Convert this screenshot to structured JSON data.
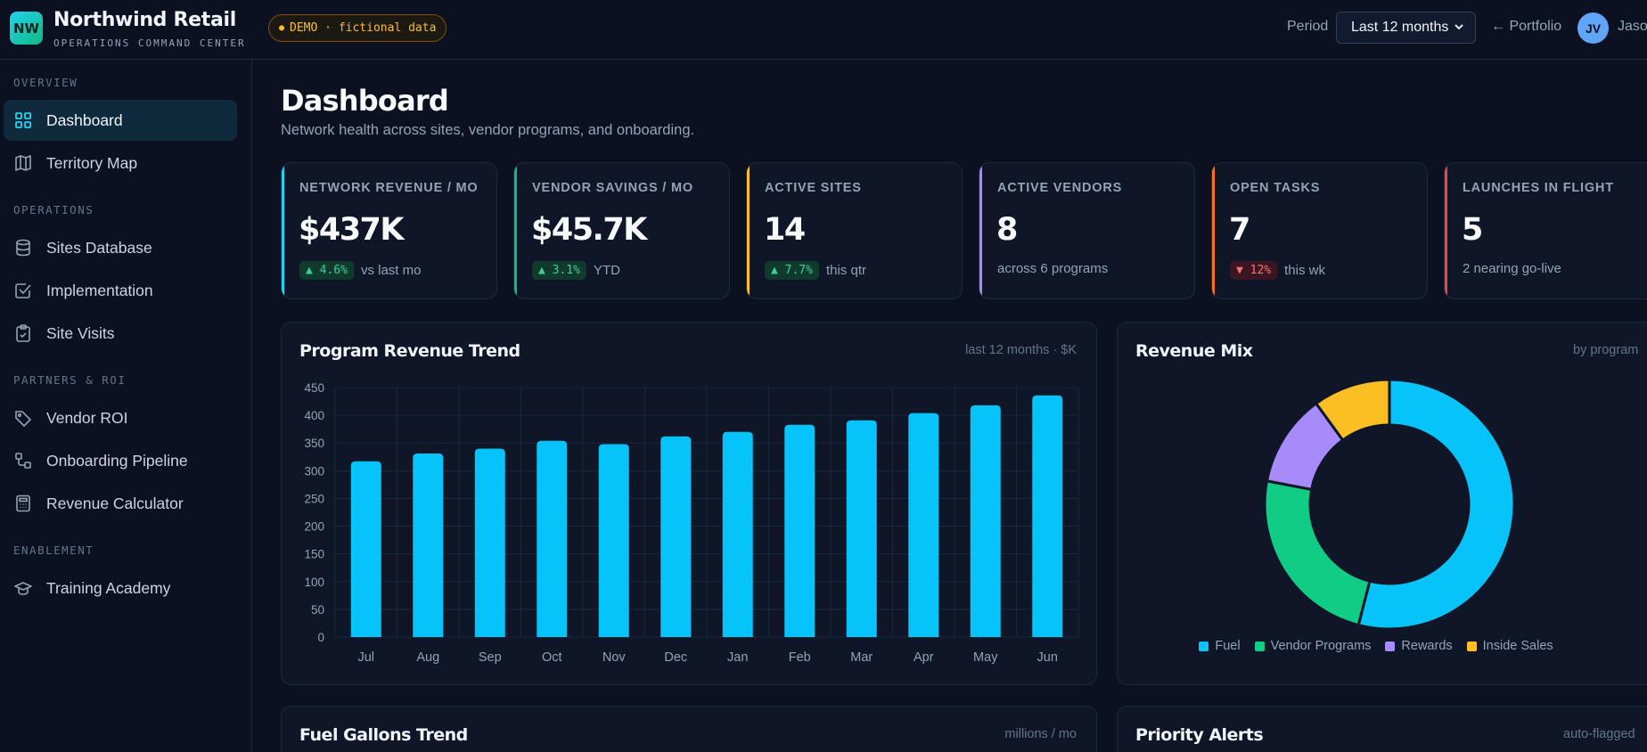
{
  "brand": {
    "logo": "NW",
    "title": "Northwind Retail",
    "subtitle": "OPERATIONS COMMAND CENTER"
  },
  "demo_badge": "DEMO · fictional data",
  "header": {
    "period_label": "Period",
    "period_value": "Last 12 months",
    "portfolio_link": "← Portfolio",
    "avatar": "JV",
    "user_name": "Jason V."
  },
  "sidebar": {
    "sections": [
      {
        "label": "OVERVIEW"
      },
      {
        "label": "OPERATIONS"
      },
      {
        "label": "PARTNERS & ROI"
      },
      {
        "label": "ENABLEMENT"
      }
    ],
    "items": [
      {
        "label": "Dashboard",
        "icon": "grid-icon",
        "active": true
      },
      {
        "label": "Territory Map",
        "icon": "map-icon"
      },
      {
        "label": "Sites Database",
        "icon": "database-icon"
      },
      {
        "label": "Implementation",
        "icon": "checkbox-icon"
      },
      {
        "label": "Site Visits",
        "icon": "clipboard-icon"
      },
      {
        "label": "Vendor ROI",
        "icon": "tag-icon"
      },
      {
        "label": "Onboarding Pipeline",
        "icon": "workflow-icon"
      },
      {
        "label": "Revenue Calculator",
        "icon": "calculator-icon"
      },
      {
        "label": "Training Academy",
        "icon": "graduation-cap-icon"
      }
    ]
  },
  "page": {
    "title": "Dashboard",
    "subtitle": "Network health across sites, vendor programs, and onboarding."
  },
  "kpis": [
    {
      "label": "NETWORK REVENUE / MO",
      "value": "$437K",
      "delta": "▲ 4.6%",
      "direction": "up",
      "note": "vs last mo",
      "color": "#22d3ee"
    },
    {
      "label": "VENDOR SAVINGS / MO",
      "value": "$45.7K",
      "delta": "▲ 3.1%",
      "direction": "up",
      "note": "YTD",
      "color": "#10b981"
    },
    {
      "label": "ACTIVE SITES",
      "value": "14",
      "delta": "▲ 7.7%",
      "direction": "up",
      "note": "this qtr",
      "color": "#fbbf24"
    },
    {
      "label": "ACTIVE VENDORS",
      "value": "8",
      "delta": "",
      "direction": "none",
      "note": "across 6 programs",
      "color": "#a78bfa"
    },
    {
      "label": "OPEN TASKS",
      "value": "7",
      "delta": "▼ 12%",
      "direction": "down",
      "note": "this wk",
      "color": "#f97316"
    },
    {
      "label": "LAUNCHES IN FLIGHT",
      "value": "5",
      "delta": "",
      "direction": "none",
      "note": "2 nearing go-live",
      "color": "#ef4444"
    }
  ],
  "cards": {
    "revenue_trend": {
      "title": "Program Revenue Trend",
      "meta": "last 12 months · $K"
    },
    "revenue_mix": {
      "title": "Revenue Mix",
      "meta": "by program"
    },
    "fuel_trend": {
      "title": "Fuel Gallons Trend",
      "meta": "millions / mo"
    },
    "alerts": {
      "title": "Priority Alerts",
      "meta": "auto-flagged"
    }
  },
  "chart_data": [
    {
      "type": "bar",
      "title": "Program Revenue Trend",
      "categories": [
        "Jul",
        "Aug",
        "Sep",
        "Oct",
        "Nov",
        "Dec",
        "Jan",
        "Feb",
        "Mar",
        "Apr",
        "May",
        "Jun"
      ],
      "values": [
        317,
        331,
        340,
        354,
        348,
        362,
        370,
        383,
        391,
        404,
        418,
        436
      ],
      "ylim": [
        0,
        450
      ],
      "yticks": [
        0,
        50,
        100,
        150,
        200,
        250,
        300,
        350,
        400,
        450
      ],
      "grid": true,
      "color": "#06c3f9"
    },
    {
      "type": "pie",
      "title": "Revenue Mix",
      "categories": [
        "Fuel",
        "Vendor Programs",
        "Rewards",
        "Inside Sales"
      ],
      "values": [
        54,
        24,
        12,
        10
      ],
      "colors": [
        "#06c3f9",
        "#10cc84",
        "#a78bfa",
        "#fbbf24"
      ],
      "legend": "bottom"
    }
  ]
}
